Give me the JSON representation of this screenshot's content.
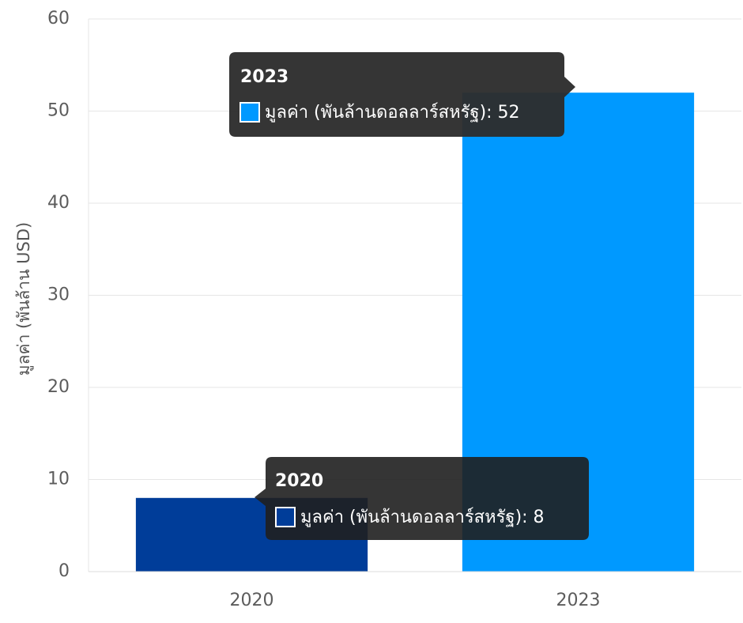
{
  "chart_data": {
    "type": "bar",
    "categories": [
      "2020",
      "2023"
    ],
    "series": [
      {
        "name": "มูลค่า (พันล้านดอลลาร์สหรัฐ)",
        "values": [
          8,
          52
        ]
      }
    ],
    "ylabel": "มูลค่า (พันล้าน USD)",
    "ylim": [
      0,
      60
    ],
    "yticks": [
      0,
      10,
      20,
      30,
      40,
      50,
      60
    ],
    "grid": true,
    "bar_colors": [
      "#003d99",
      "#0099ff"
    ],
    "tooltips": [
      {
        "title": "2023",
        "label": "มูลค่า (พันล้านดอลลาร์สหรัฐ): 52",
        "swatch_fill": "#0099ff"
      },
      {
        "title": "2020",
        "label": "มูลค่า (พันล้านดอลลาร์สหรัฐ): 8",
        "swatch_fill": "#003d99"
      }
    ]
  }
}
